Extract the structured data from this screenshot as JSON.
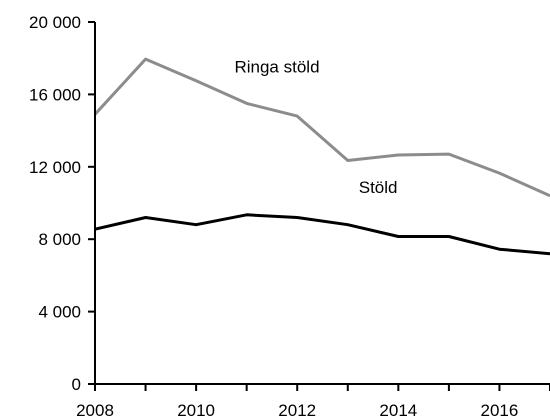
{
  "chart_data": {
    "type": "line",
    "title": "",
    "xlabel": "",
    "ylabel": "",
    "x": [
      2008,
      2009,
      2010,
      2011,
      2012,
      2013,
      2014,
      2015,
      2016,
      2017
    ],
    "xlim": [
      2008,
      2017
    ],
    "ylim": [
      0,
      20000
    ],
    "x_ticks": [
      2008,
      2010,
      2012,
      2014,
      2016
    ],
    "x_tick_labels": [
      "2008",
      "2010",
      "2012",
      "2014",
      "2016"
    ],
    "y_ticks": [
      0,
      4000,
      8000,
      12000,
      16000,
      20000
    ],
    "y_tick_labels": [
      "0",
      "4 000",
      "8 000",
      "12 000",
      "16 000",
      "20 000"
    ],
    "grid": false,
    "legend": "none",
    "series": [
      {
        "name": "Ringa stöld",
        "color": "#8c8c8c",
        "values": [
          14900,
          17950,
          16750,
          15500,
          14800,
          12350,
          12650,
          12700,
          11650,
          10400
        ],
        "label_anchor": [
          2011.6,
          17200
        ]
      },
      {
        "name": "Stöld",
        "color": "#000000",
        "values": [
          8550,
          9200,
          8800,
          9350,
          9200,
          8800,
          8150,
          8150,
          7450,
          7200
        ],
        "label_anchor": [
          2013.6,
          10550
        ]
      }
    ]
  }
}
